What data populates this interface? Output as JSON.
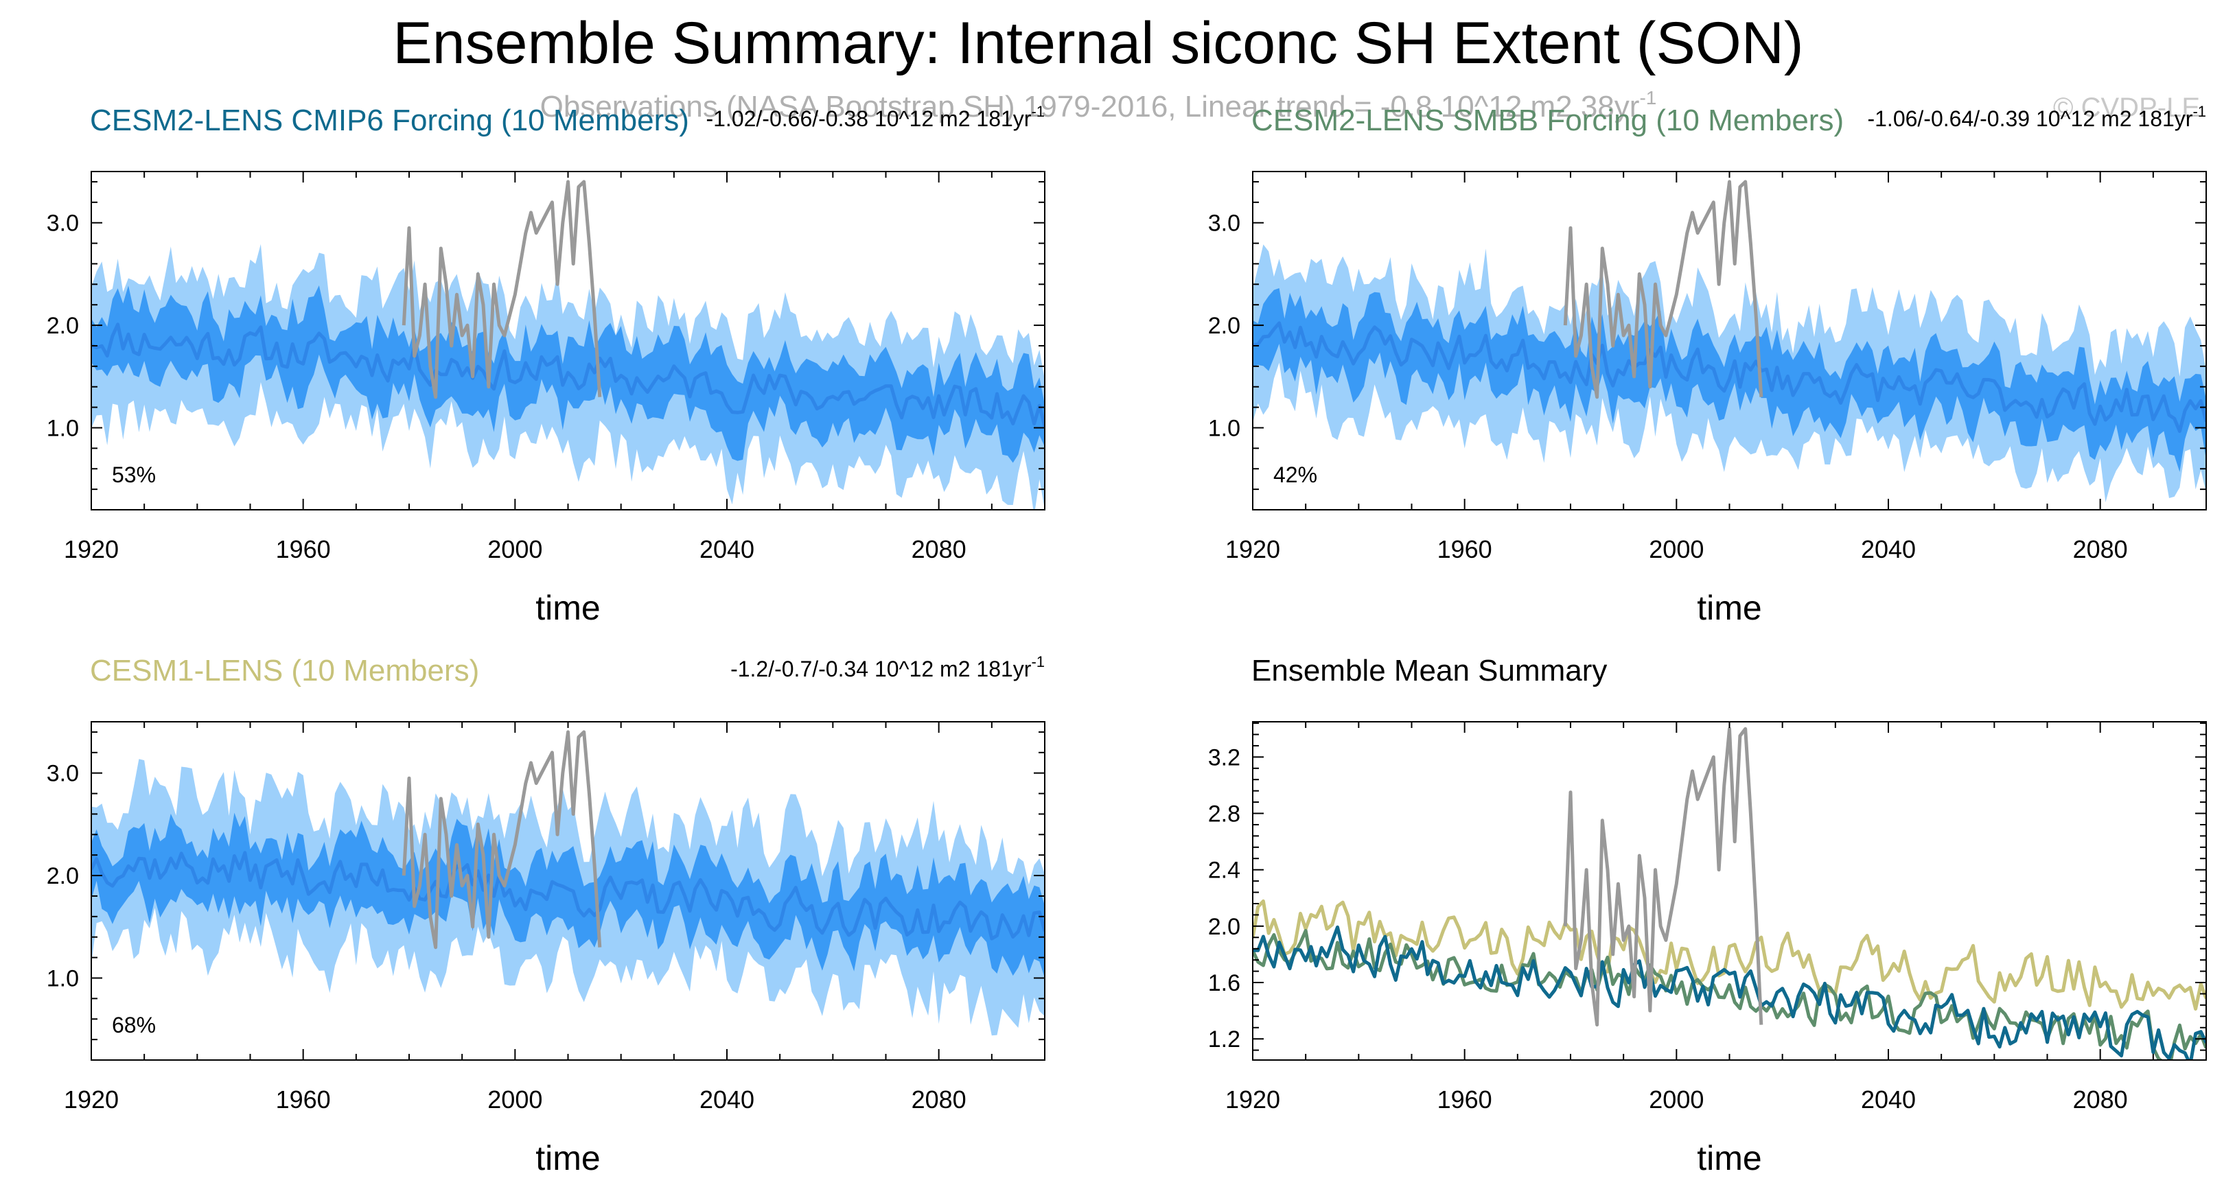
{
  "figure": {
    "title": "Ensemble Summary: Internal siconc SH Extent (SON)",
    "subtitle": "Observations (NASA Bootstrap SH) 1979-2016, Linear trend = -0.8 10^12 m2 38yr",
    "subtitle_sup": "-1",
    "watermark": "© CVDP-LE"
  },
  "colors": {
    "band_outer": "#9dd0fb",
    "band_inner": "#3a9af5",
    "ens_mean": "#2f86e8",
    "obs": "#999999",
    "cesm2_cmip6": "#0f6a8e",
    "cesm2_smbb": "#5e8e6c",
    "cesm1": "#c7c27a",
    "axis": "#000000"
  },
  "chart_data": [
    {
      "type": "area",
      "id": "cesm2_cmip6",
      "title": "CESM2-LENS CMIP6 Forcing (10 Members)",
      "title_color": "#0f6a8e",
      "trend_text": "-1.02/-0.66/-0.38 10^12 m2 181yr",
      "trend_sup": "-1",
      "percent_label": "53%",
      "xlabel": "time",
      "ylabel": "",
      "xlim": [
        1920,
        2100
      ],
      "ylim": [
        0.2,
        3.5
      ],
      "xticks": [
        1920,
        1960,
        2000,
        2040,
        2080
      ],
      "xtick_labels": [
        "1920",
        "1960",
        "2000",
        "2040",
        "2080"
      ],
      "yticks": [
        1.0,
        2.0,
        3.0
      ],
      "ytick_labels": [
        "1.0",
        "2.0",
        "3.0"
      ],
      "mean_trend": [
        1.9,
        1.15
      ],
      "inner_halfwidth": 0.32,
      "outer_halfwidth": 0.68,
      "seed": 11,
      "series": [
        {
          "role": "obs",
          "x": [
            1979,
            1980,
            1981,
            1982,
            1983,
            1984,
            1985,
            1986,
            1987,
            1988,
            1989,
            1990,
            1991,
            1992,
            1993,
            1994,
            1995,
            1996,
            1997,
            1998,
            1999,
            2000,
            2001,
            2002,
            2003,
            2004,
            2005,
            2006,
            2007,
            2008,
            2009,
            2010,
            2011,
            2012,
            2013,
            2014,
            2015,
            2016
          ],
          "values": [
            2.0,
            2.95,
            1.7,
            1.9,
            2.4,
            1.6,
            1.3,
            2.75,
            2.4,
            1.8,
            2.3,
            1.9,
            2.0,
            1.5,
            2.5,
            2.2,
            1.4,
            2.4,
            2.0,
            1.9,
            2.1,
            2.3,
            2.6,
            2.9,
            3.1,
            2.9,
            3.0,
            3.1,
            3.2,
            2.4,
            3.0,
            3.4,
            2.6,
            3.35,
            3.4,
            2.8,
            2.1,
            1.3
          ]
        }
      ]
    },
    {
      "type": "area",
      "id": "cesm2_smbb",
      "title": "CESM2-LENS SMBB Forcing (10 Members)",
      "title_color": "#5e8e6c",
      "trend_text": "-1.06/-0.64/-0.39 10^12 m2 181yr",
      "trend_sup": "-1",
      "percent_label": "42%",
      "xlabel": "time",
      "ylabel": "",
      "xlim": [
        1920,
        2100
      ],
      "ylim": [
        0.2,
        3.5
      ],
      "xticks": [
        1920,
        1960,
        2000,
        2040,
        2080
      ],
      "xtick_labels": [
        "1920",
        "1960",
        "2000",
        "2040",
        "2080"
      ],
      "yticks": [
        1.0,
        2.0,
        3.0
      ],
      "ytick_labels": [
        "1.0",
        "2.0",
        "3.0"
      ],
      "mean_trend": [
        1.9,
        1.15
      ],
      "inner_halfwidth": 0.3,
      "outer_halfwidth": 0.65,
      "seed": 23,
      "series": [
        {
          "role": "obs",
          "x": [
            1979,
            1980,
            1981,
            1982,
            1983,
            1984,
            1985,
            1986,
            1987,
            1988,
            1989,
            1990,
            1991,
            1992,
            1993,
            1994,
            1995,
            1996,
            1997,
            1998,
            1999,
            2000,
            2001,
            2002,
            2003,
            2004,
            2005,
            2006,
            2007,
            2008,
            2009,
            2010,
            2011,
            2012,
            2013,
            2014,
            2015,
            2016
          ],
          "values": [
            2.0,
            2.95,
            1.7,
            1.9,
            2.4,
            1.6,
            1.3,
            2.75,
            2.4,
            1.8,
            2.3,
            1.9,
            2.0,
            1.5,
            2.5,
            2.2,
            1.4,
            2.4,
            2.0,
            1.9,
            2.1,
            2.3,
            2.6,
            2.9,
            3.1,
            2.9,
            3.0,
            3.1,
            3.2,
            2.4,
            3.0,
            3.4,
            2.6,
            3.35,
            3.4,
            2.8,
            2.1,
            1.3
          ]
        }
      ]
    },
    {
      "type": "area",
      "id": "cesm1",
      "title": "CESM1-LENS (10 Members)",
      "title_color": "#c7c27a",
      "trend_text": "-1.2/-0.7/-0.34 10^12 m2 181yr",
      "trend_sup": "-1",
      "percent_label": "68%",
      "xlabel": "time",
      "ylabel": "",
      "xlim": [
        1920,
        2100
      ],
      "ylim": [
        0.2,
        3.5
      ],
      "xticks": [
        1920,
        1960,
        2000,
        2040,
        2080
      ],
      "xtick_labels": [
        "1920",
        "1960",
        "2000",
        "2040",
        "2080"
      ],
      "yticks": [
        1.0,
        2.0,
        3.0
      ],
      "ytick_labels": [
        "1.0",
        "2.0",
        "3.0"
      ],
      "mean_trend": [
        2.15,
        1.5
      ],
      "inner_halfwidth": 0.32,
      "outer_halfwidth": 0.72,
      "seed": 37,
      "series": [
        {
          "role": "obs",
          "x": [
            1979,
            1980,
            1981,
            1982,
            1983,
            1984,
            1985,
            1986,
            1987,
            1988,
            1989,
            1990,
            1991,
            1992,
            1993,
            1994,
            1995,
            1996,
            1997,
            1998,
            1999,
            2000,
            2001,
            2002,
            2003,
            2004,
            2005,
            2006,
            2007,
            2008,
            2009,
            2010,
            2011,
            2012,
            2013,
            2014,
            2015,
            2016
          ],
          "values": [
            2.0,
            2.95,
            1.7,
            1.9,
            2.4,
            1.6,
            1.3,
            2.75,
            2.4,
            1.8,
            2.3,
            1.9,
            2.0,
            1.5,
            2.5,
            2.2,
            1.4,
            2.4,
            2.0,
            1.9,
            2.1,
            2.3,
            2.6,
            2.9,
            3.1,
            2.9,
            3.0,
            3.1,
            3.2,
            2.4,
            3.0,
            3.4,
            2.6,
            3.35,
            3.4,
            2.8,
            2.1,
            1.3
          ]
        }
      ]
    },
    {
      "type": "line",
      "id": "ens_mean_summary",
      "title": "Ensemble Mean Summary",
      "title_color": "#000000",
      "trend_text": "",
      "trend_sup": "",
      "percent_label": "",
      "xlabel": "time",
      "ylabel": "",
      "xlim": [
        1920,
        2100
      ],
      "ylim": [
        1.05,
        3.45
      ],
      "xticks": [
        1920,
        1960,
        2000,
        2040,
        2080
      ],
      "xtick_labels": [
        "1920",
        "1960",
        "2000",
        "2040",
        "2080"
      ],
      "yticks": [
        1.2,
        1.6,
        2.0,
        2.4,
        2.8,
        3.2
      ],
      "ytick_labels": [
        "1.2",
        "1.6",
        "2.0",
        "2.4",
        "2.8",
        "3.2"
      ],
      "series": [
        {
          "role": "model",
          "color_key": "cesm1",
          "mean_trend": [
            2.0,
            1.55
          ],
          "noise": 0.17,
          "seed": 41
        },
        {
          "role": "model",
          "color_key": "cesm2_smbb",
          "mean_trend": [
            1.9,
            1.15
          ],
          "noise": 0.15,
          "seed": 53
        },
        {
          "role": "model",
          "color_key": "cesm2_cmip6",
          "mean_trend": [
            1.9,
            1.15
          ],
          "noise": 0.15,
          "seed": 67
        },
        {
          "role": "obs",
          "x": [
            1979,
            1980,
            1981,
            1982,
            1983,
            1984,
            1985,
            1986,
            1987,
            1988,
            1989,
            1990,
            1991,
            1992,
            1993,
            1994,
            1995,
            1996,
            1997,
            1998,
            1999,
            2000,
            2001,
            2002,
            2003,
            2004,
            2005,
            2006,
            2007,
            2008,
            2009,
            2010,
            2011,
            2012,
            2013,
            2014,
            2015,
            2016
          ],
          "values": [
            2.0,
            2.95,
            1.7,
            1.9,
            2.4,
            1.6,
            1.3,
            2.75,
            2.4,
            1.8,
            2.3,
            1.9,
            2.0,
            1.5,
            2.5,
            2.2,
            1.4,
            2.4,
            2.0,
            1.9,
            2.1,
            2.3,
            2.6,
            2.9,
            3.1,
            2.9,
            3.0,
            3.1,
            3.2,
            2.4,
            3.0,
            3.4,
            2.6,
            3.35,
            3.4,
            2.8,
            2.1,
            1.3
          ]
        }
      ]
    }
  ]
}
